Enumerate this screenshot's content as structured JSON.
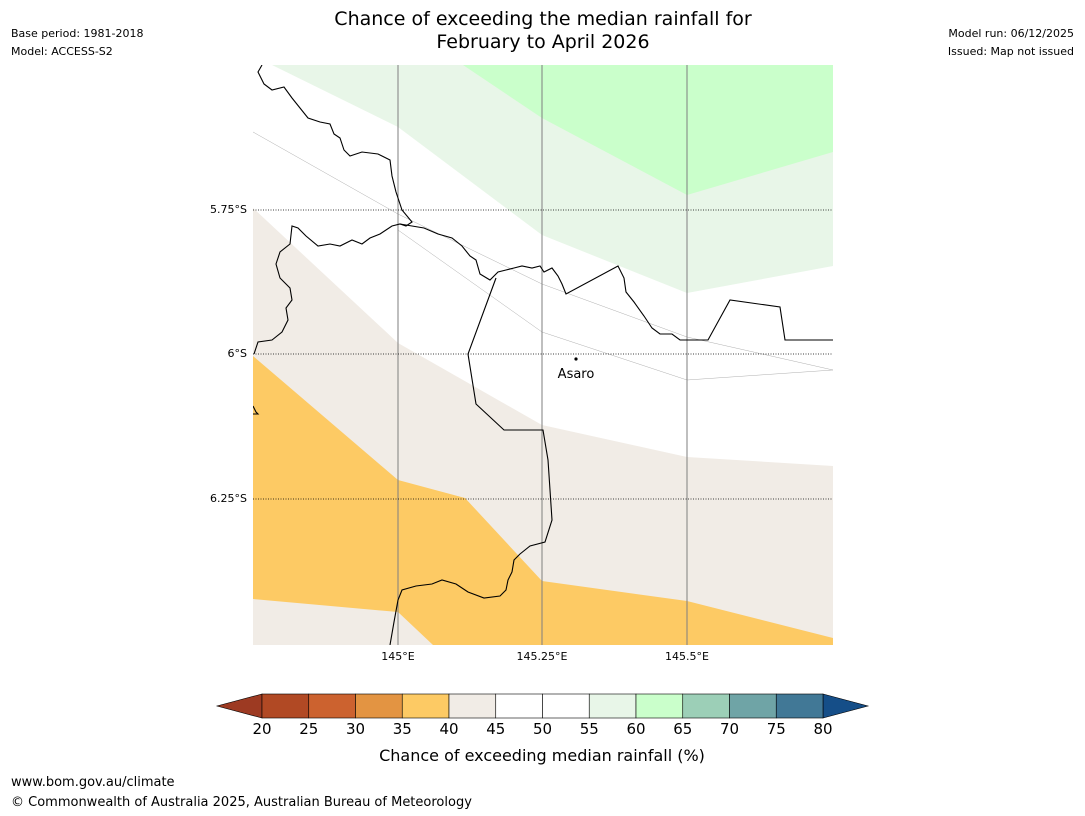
{
  "header": {
    "title_line1": "Chance of exceeding the median rainfall for",
    "title_line2": "February to April 2026",
    "base_period": "Base period: 1981-2018",
    "model": "Model: ACCESS-S2",
    "model_run": "Model run: 06/12/2025",
    "issued": "Issued: Map not issued"
  },
  "map": {
    "lat_labels": [
      "5.75°S",
      "6°S",
      "6.25°S"
    ],
    "lon_labels": [
      "145°E",
      "145.25°E",
      "145.5°E"
    ],
    "place_label": "Asaro",
    "band_colors": {
      "b35_40": "#fdca64",
      "b40_45": "#f1ece6",
      "b45_55": "#ffffff",
      "b55_60": "#e8f6e8",
      "b60_65": "#caffcb"
    }
  },
  "legend": {
    "title": "Chance of exceeding median rainfall (%)",
    "ticks": [
      "20",
      "25",
      "30",
      "35",
      "40",
      "45",
      "50",
      "55",
      "60",
      "65",
      "70",
      "75",
      "80"
    ],
    "under_color": "#9d3a22",
    "over_color": "#154e88",
    "colors": [
      "#b14924",
      "#cc622f",
      "#e39442",
      "#fdca64",
      "#f1ece6",
      "#ffffff",
      "#ffffff",
      "#e8f6e8",
      "#caffcb",
      "#9ccfb7",
      "#6fa4a6",
      "#417896"
    ]
  },
  "footer": {
    "url": "www.bom.gov.au/climate",
    "copyright": "© Commonwealth of Australia 2025, Australian Bureau of Meteorology"
  }
}
